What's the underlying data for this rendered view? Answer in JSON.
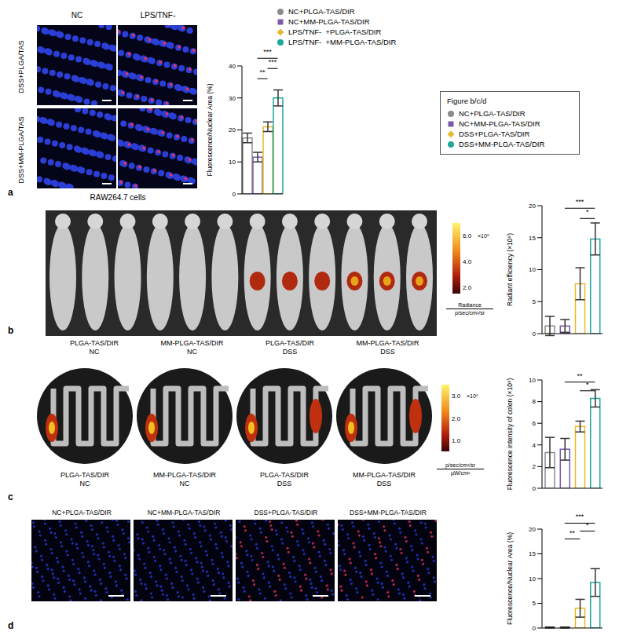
{
  "figure": {
    "panel_a": {
      "label": "a",
      "columns": [
        "NC",
        "LPS/TNF-"
      ],
      "rows": [
        "DSS+PLGA/TAS",
        "DSS+MM-PLGA/TAS"
      ],
      "caption": "RAW264.7 cells",
      "legend": [
        {
          "name": "NC+PLGA-TAS/DIR",
          "color": "#8c8c8c",
          "marker": "circle"
        },
        {
          "name": "NC+MM-PLGA-TAS/DIR",
          "color": "#7a5aa8",
          "marker": "square"
        },
        {
          "name": "LPS/TNF-  +PLGA-TAS/DIR",
          "color": "#e8b82e",
          "marker": "diamond"
        },
        {
          "name": "LPS/TNF-  +MM-PLGA-TAS/DIR",
          "color": "#1fa89a",
          "marker": "circle"
        }
      ]
    },
    "legend_bcd": {
      "title": "Figure b/c/d",
      "entries": [
        {
          "name": "NC+PLGA-TAS/DIR",
          "color": "#8c8c8c",
          "marker": "circle"
        },
        {
          "name": "NC+MM-PLGA-TAS/DIR",
          "color": "#7a5aa8",
          "marker": "square"
        },
        {
          "name": "DSS+PLGA-TAS/DIR",
          "color": "#e8b82e",
          "marker": "diamond"
        },
        {
          "name": "DSS+MM-PLGA-TAS/DIR",
          "color": "#1fa89a",
          "marker": "circle"
        }
      ]
    },
    "panel_b": {
      "label": "b",
      "captions": [
        [
          "PLGA-TAS/DIR",
          "NC"
        ],
        [
          "MM-PLGA-TAS/DIR",
          "NC"
        ],
        [
          "PLGA-TAS/DIR",
          "DSS"
        ],
        [
          "MM-PLGA-TAS/DIR",
          "DSS"
        ]
      ],
      "colorbar": {
        "range": [
          1.5,
          7
        ],
        "ticks": [
          {
            "value": 2,
            "label": "2.0"
          },
          {
            "value": 4,
            "label": "4.0"
          },
          {
            "value": 6,
            "label": "6.0"
          }
        ],
        "exponent": "×10⁸",
        "units": [
          "Radiance",
          "p/sec/cm²/sr"
        ]
      }
    },
    "panel_c": {
      "label": "c",
      "captions": [
        [
          "PLGA-TAS/DIR",
          "NC"
        ],
        [
          "MM-PLGA-TAS/DIR",
          "NC"
        ],
        [
          "PLGA-TAS/DIR",
          "DSS"
        ],
        [
          "MM-PLGA-TAS/DIR",
          "DSS"
        ]
      ],
      "colorbar": {
        "range": [
          0.5,
          3.5
        ],
        "ticks": [
          {
            "value": 1,
            "label": "1.0"
          },
          {
            "value": 2,
            "label": "2.0"
          },
          {
            "value": 3,
            "label": "3.0"
          }
        ],
        "exponent": "×10⁸",
        "units": [
          "p/sec/cm²/sr",
          "µW/cm²"
        ]
      }
    },
    "panel_d": {
      "label": "d",
      "headers": [
        "NC+PLGA-TAS/DIR",
        "NC+MM-PLGA-TAS/DIR",
        "DSS+PLGA-TAS/DIR",
        "DSS+MM-PLGA-TAS/DIR"
      ]
    }
  },
  "chart_data": [
    {
      "type": "bar",
      "ylabel": "Fluorescence/Nuclear Area (%)",
      "categories": [
        "NC+PLGA-TAS/DIR",
        "NC+MM-PLGA-TAS/DIR",
        "LPS/TNF-  +PLGA-TAS/DIR",
        "LPS/TNF-  +MM-PLGA-TAS/DIR"
      ],
      "values": [
        17.5,
        11.5,
        21,
        30
      ],
      "errors": [
        1.5,
        1.5,
        1.5,
        2.5
      ],
      "colors": [
        "#8c8c8c",
        "#7a5aa8",
        "#e8b82e",
        "#1fa89a"
      ],
      "ylim": [
        0,
        40
      ],
      "yticks": [
        0,
        10,
        20,
        30,
        40
      ],
      "tick_labels": "y",
      "significance": [
        {
          "from": 1,
          "to": 2,
          "label": "**"
        },
        {
          "from": 2,
          "to": 3,
          "label": "***"
        },
        {
          "from": 1,
          "to": 3,
          "label": "***"
        }
      ]
    },
    {
      "type": "bar",
      "ylabel": "Radiant efficiency (×10⁸)",
      "categories": [
        "NC+PLGA-TAS/DIR",
        "NC+MM-PLGA-TAS/DIR",
        "DSS+PLGA-TAS/DIR",
        "DSS+MM-PLGA-TAS/DIR"
      ],
      "values": [
        1.2,
        1.2,
        7.8,
        14.8
      ],
      "errors": [
        1.5,
        1,
        2.5,
        2.5
      ],
      "colors": [
        "#8c8c8c",
        "#7a5aa8",
        "#e8b82e",
        "#1fa89a"
      ],
      "ylim": [
        0,
        20
      ],
      "yticks": [
        0,
        5,
        10,
        15,
        20
      ],
      "tick_labels": "y",
      "significance": [
        {
          "from": 2,
          "to": 3,
          "label": "*"
        },
        {
          "from": 1,
          "to": 3,
          "label": "***"
        }
      ]
    },
    {
      "type": "bar",
      "ylabel": "Fluorescence intensity of colon (×10⁸)",
      "categories": [
        "NC+PLGA-TAS/DIR",
        "NC+MM-PLGA-TAS/DIR",
        "DSS+PLGA-TAS/DIR",
        "DSS+MM-PLGA-TAS/DIR"
      ],
      "values": [
        3.3,
        3.6,
        5.7,
        8.3
      ],
      "errors": [
        1.4,
        1,
        0.5,
        0.8
      ],
      "colors": [
        "#8c8c8c",
        "#7a5aa8",
        "#e8b82e",
        "#1fa89a"
      ],
      "ylim": [
        0,
        10
      ],
      "yticks": [
        0,
        2,
        4,
        6,
        8,
        10
      ],
      "tick_labels": "y",
      "significance": [
        {
          "from": 2,
          "to": 3,
          "label": "*"
        },
        {
          "from": 1,
          "to": 3,
          "label": "**"
        }
      ]
    },
    {
      "type": "bar",
      "ylabel": "Fluorescence/Nuclear Area (%)",
      "categories": [
        "NC+PLGA-TAS/DIR",
        "NC+MM-PLGA-TAS/DIR",
        "DSS+PLGA-TAS/DIR",
        "DSS+MM-PLGA-TAS/DIR"
      ],
      "values": [
        0.1,
        0.1,
        4,
        9.2
      ],
      "errors": [
        0.1,
        0.1,
        1.8,
        2.8
      ],
      "colors": [
        "#8c8c8c",
        "#7a5aa8",
        "#e8b82e",
        "#1fa89a"
      ],
      "ylim": [
        0,
        20
      ],
      "yticks": [
        0,
        5,
        10,
        15,
        20
      ],
      "tick_labels": "y",
      "significance": [
        {
          "from": 1,
          "to": 2,
          "label": "**"
        },
        {
          "from": 2,
          "to": 3,
          "label": "*"
        },
        {
          "from": 1,
          "to": 3,
          "label": "***"
        }
      ]
    }
  ]
}
